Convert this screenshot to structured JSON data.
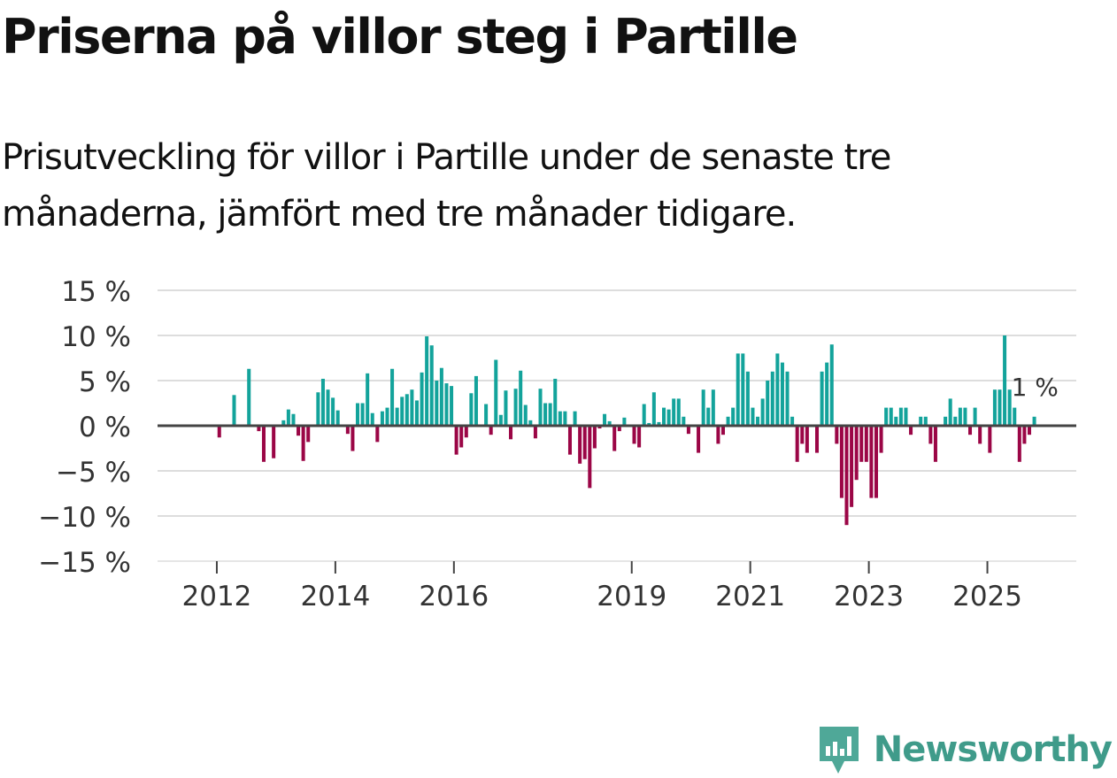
{
  "title": "Priserna på villor steg i Partille",
  "subtitle": "Prisutveckling för villor i Partille under de senaste tre månaderna, jämfört med tre månader tidigare.",
  "brand": "Newsworthy",
  "colors": {
    "positive": "#13a39b",
    "negative": "#9b0646",
    "grid": "#dddddd",
    "zero_line": "#444444",
    "axis_text": "#333333",
    "brand": "#3f9b8a"
  },
  "chart_data": {
    "type": "bar",
    "title": "Priserna på villor steg i Partille",
    "xlabel": "",
    "ylabel": "",
    "ylim": [
      -15,
      15
    ],
    "y_ticks": [
      {
        "value": 15,
        "label": "15 %"
      },
      {
        "value": 10,
        "label": "10 %"
      },
      {
        "value": 5,
        "label": "5 %"
      },
      {
        "value": 0,
        "label": "0 %"
      },
      {
        "value": -5,
        "label": "−5 %"
      },
      {
        "value": -10,
        "label": "−10 %"
      },
      {
        "value": -15,
        "label": "−15 %"
      }
    ],
    "x_ticks": [
      {
        "value": 2012,
        "label": "2012"
      },
      {
        "value": 2014,
        "label": "2014"
      },
      {
        "value": 2016,
        "label": "2016"
      },
      {
        "value": 2019,
        "label": "2019"
      },
      {
        "value": 2021,
        "label": "2021"
      },
      {
        "value": 2023,
        "label": "2023"
      },
      {
        "value": 2025,
        "label": "2025"
      }
    ],
    "start": {
      "year": 2011,
      "month": 1
    },
    "frequency": "monthly",
    "values": [
      0,
      0,
      0,
      0,
      0,
      0,
      0,
      0,
      0,
      0,
      0,
      0,
      -1.3,
      0,
      0,
      3.4,
      0,
      0,
      6.3,
      0,
      -0.6,
      -4,
      0,
      -3.6,
      0,
      0.6,
      1.8,
      1.3,
      -1.1,
      -3.9,
      -1.8,
      0,
      3.7,
      5.2,
      4,
      3.1,
      1.7,
      0,
      -0.9,
      -2.8,
      2.5,
      2.5,
      5.8,
      1.4,
      -1.8,
      1.6,
      2,
      6.3,
      2,
      3.2,
      3.5,
      4,
      2.8,
      5.9,
      9.9,
      8.9,
      5,
      6.4,
      4.7,
      4.4,
      -3.2,
      -2.4,
      -1.3,
      3.6,
      5.5,
      0,
      2.4,
      -1,
      7.3,
      1.2,
      3.9,
      -1.5,
      4.1,
      6.1,
      2.3,
      0.6,
      -1.4,
      4.1,
      2.5,
      2.5,
      5.2,
      1.6,
      1.6,
      -3.2,
      1.6,
      -4.2,
      -3.7,
      -6.9,
      -2.5,
      -0.3,
      1.3,
      0.5,
      -2.8,
      -0.6,
      0.9,
      0,
      -2,
      -2.4,
      2.4,
      0.3,
      3.7,
      0.4,
      2,
      1.8,
      3,
      3,
      1,
      -0.9,
      0,
      -3,
      4,
      2,
      4,
      -2,
      -1,
      1,
      2,
      8,
      8,
      6,
      2,
      1,
      3,
      5,
      6,
      8,
      7,
      6,
      1,
      -4,
      -2,
      -3,
      0,
      -3,
      6,
      7,
      9,
      -2,
      -8,
      -11,
      -9,
      -6,
      -4,
      -4,
      -8,
      -8,
      -3,
      2,
      2,
      1,
      2,
      2,
      -1,
      0,
      1,
      1,
      -2,
      -4,
      0,
      1,
      3,
      1,
      2,
      2,
      -1,
      2,
      -2,
      0,
      -3,
      4,
      4,
      10,
      4,
      2,
      -4,
      -2,
      -1,
      1
    ],
    "annotation": {
      "text": "1 %",
      "target": "last"
    }
  }
}
